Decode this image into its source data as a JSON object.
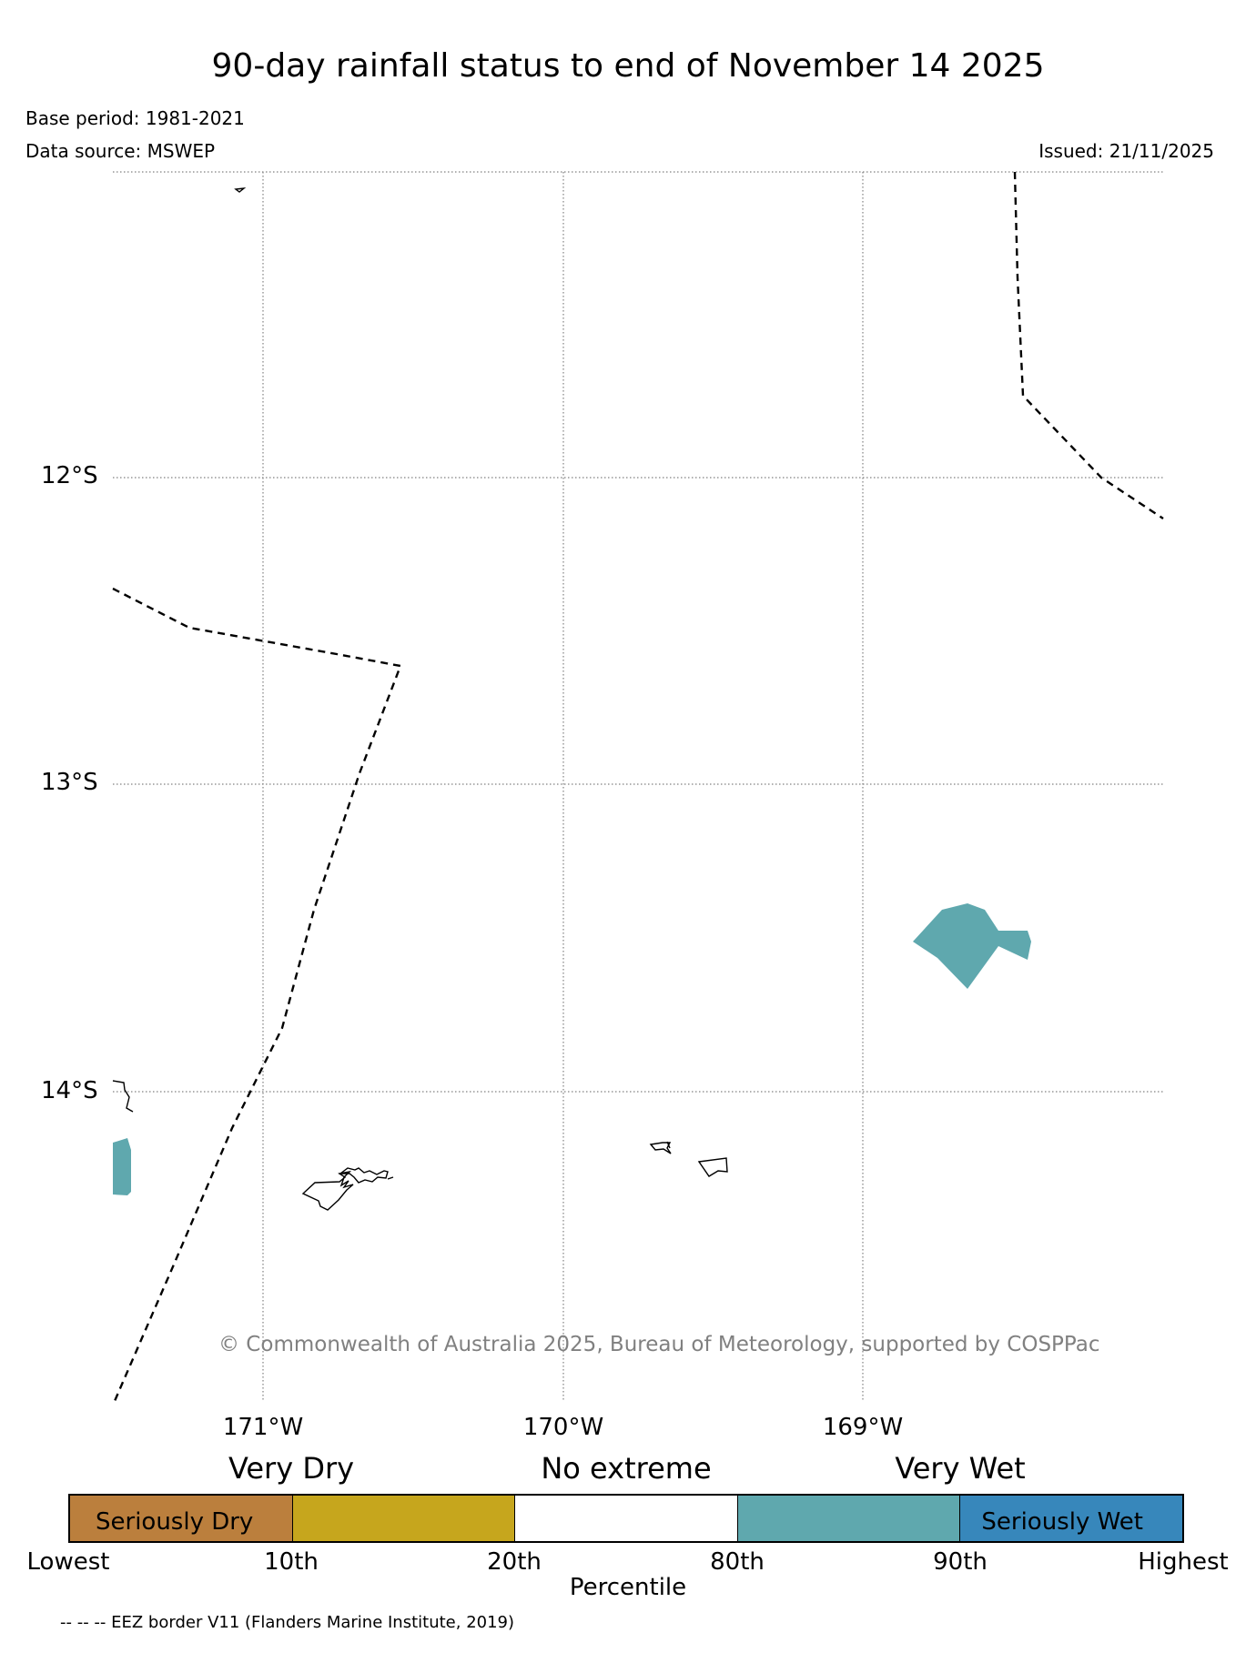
{
  "title": "90-day rainfall status to end of November 14 2025",
  "base_period": "Base period: 1981-2021",
  "data_source": "Data source: MSWEP",
  "issued": "Issued: 21/11/2025",
  "map": {
    "lat_labels": [
      "12°S",
      "13°S",
      "14°S"
    ],
    "lon_labels": [
      "171°W",
      "170°W",
      "169°W"
    ],
    "copyright": "© Commonwealth of Australia 2025, Bureau of Meteorology, supported by COSPPac",
    "shaded_area_color": "#5fa8ae",
    "eez_line_style": "dashed"
  },
  "legend": {
    "categories": [
      "Very Dry",
      "No extreme",
      "Very Wet"
    ],
    "segments": [
      {
        "label": "Seriously Dry",
        "color": "#bb7f3d"
      },
      {
        "label": "",
        "color": "#c6a61d"
      },
      {
        "label": "",
        "color": "#ffffff"
      },
      {
        "label": "",
        "color": "#5fa8ae"
      },
      {
        "label": "Seriously Wet",
        "color": "#3787bb"
      }
    ],
    "percentile_ticks": [
      "Lowest",
      "10th",
      "20th",
      "80th",
      "90th",
      "Highest"
    ],
    "axis_label": "Percentile"
  },
  "eez_note": "-- -- -- EEZ border V11 (Flanders Marine Institute, 2019)"
}
